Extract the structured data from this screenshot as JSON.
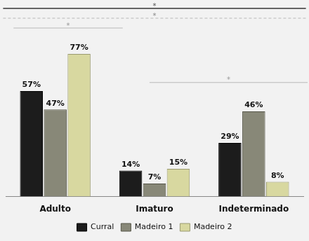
{
  "chart_data": {
    "type": "bar",
    "categories": [
      "Adulto",
      "Imaturo",
      "Indeterminado"
    ],
    "series": [
      {
        "name": "Curral",
        "color": "#1c1c1c",
        "values": [
          57,
          14,
          29
        ],
        "value_labels": [
          "57%",
          "14%",
          "29%"
        ]
      },
      {
        "name": "Madeiro 1",
        "color": "#888878",
        "values": [
          47,
          7,
          46
        ],
        "value_labels": [
          "47%",
          "7%",
          "46%"
        ]
      },
      {
        "name": "Madeiro 2",
        "color": "#d8d8a0",
        "values": [
          77,
          15,
          8
        ],
        "value_labels": [
          "77%",
          "15%",
          "8%"
        ]
      }
    ],
    "ylim": [
      0,
      88
    ],
    "grid": false,
    "legend": "bottom",
    "data_labels": true,
    "tick_labels": "x",
    "annotations": [
      "*",
      "*",
      "*",
      "*"
    ]
  }
}
